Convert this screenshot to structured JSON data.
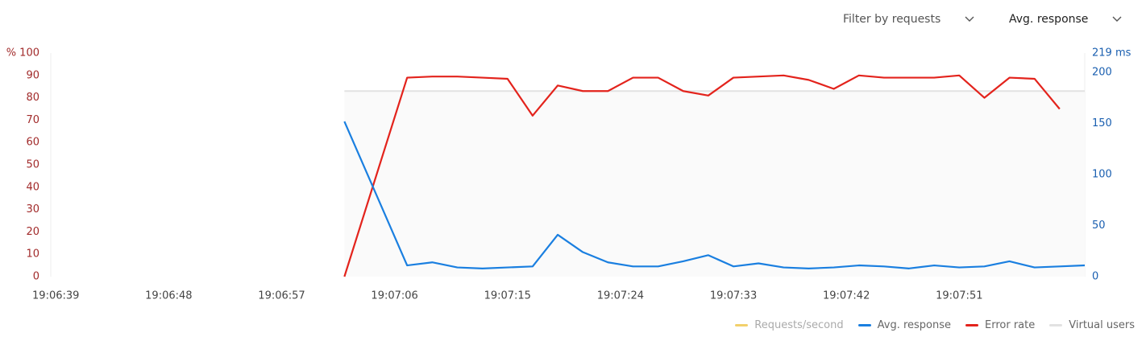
{
  "controls": {
    "filter": "Filter by requests",
    "metric": "Avg. response"
  },
  "chart_data": {
    "type": "line",
    "x": [
      68822,
      68827,
      68829,
      68831,
      68833,
      68835,
      68837,
      68839,
      68841,
      68843,
      68845,
      68847,
      68849,
      68851,
      68853,
      68855,
      68857,
      68859,
      68861,
      68863,
      68865,
      68867,
      68869,
      68871,
      68873,
      68875,
      68877,
      68879,
      68881
    ],
    "xlim": [
      68798.6,
      68881
    ],
    "xticks": [
      {
        "value": 68799,
        "label": "19:06:39"
      },
      {
        "value": 68808,
        "label": "19:06:48"
      },
      {
        "value": 68817,
        "label": "19:06:57"
      },
      {
        "value": 68826,
        "label": "19:07:06"
      },
      {
        "value": 68835,
        "label": "19:07:15"
      },
      {
        "value": 68844,
        "label": "19:07:24"
      },
      {
        "value": 68853,
        "label": "19:07:33"
      },
      {
        "value": 68862,
        "label": "19:07:42"
      },
      {
        "value": 68871,
        "label": "19:07:51"
      }
    ],
    "ylim": [
      0,
      100
    ],
    "yticks": [
      0,
      10,
      20,
      30,
      40,
      50,
      60,
      70,
      80,
      90,
      {
        "value": 100,
        "label": "% 100"
      }
    ],
    "y2lim": [
      0,
      219
    ],
    "y2ticks": [
      0,
      50,
      100,
      150,
      200,
      {
        "value": 219,
        "label": "219 ms"
      }
    ],
    "series": [
      {
        "name": "Requests/second",
        "color": "#f2d06b",
        "values": [
          null,
          null,
          null,
          null,
          null,
          null,
          null,
          null,
          null,
          null,
          null,
          null,
          null,
          null,
          null,
          null,
          null,
          null,
          null,
          null,
          null,
          null,
          null,
          null,
          null,
          null,
          null,
          null,
          null
        ]
      },
      {
        "name": "Avg. response",
        "color": "#1a7fe0",
        "axis": "y2",
        "values": [
          152,
          11,
          14,
          9,
          8,
          9,
          10,
          41,
          24,
          14,
          10,
          10,
          15,
          21,
          10,
          13,
          9,
          8,
          9,
          11,
          10,
          8,
          11,
          9,
          10,
          15,
          9,
          10,
          11
        ]
      },
      {
        "name": "Error rate",
        "color": "#e3231c",
        "values": [
          0,
          89,
          89.5,
          89.5,
          89,
          88.5,
          72,
          85.5,
          83,
          83,
          89,
          89,
          83,
          81,
          89,
          89.5,
          90,
          88,
          84,
          90,
          89,
          89,
          89,
          90,
          80,
          89,
          88.5,
          75,
          null
        ]
      },
      {
        "name": "Virtual users",
        "color": "#e2e2e2",
        "area": true,
        "values": [
          83,
          83,
          83,
          83,
          83,
          83,
          83,
          83,
          83,
          83,
          83,
          83,
          83,
          83,
          83,
          83,
          83,
          83,
          83,
          83,
          83,
          83,
          83,
          83,
          83,
          83,
          83,
          83,
          83
        ]
      }
    ]
  }
}
